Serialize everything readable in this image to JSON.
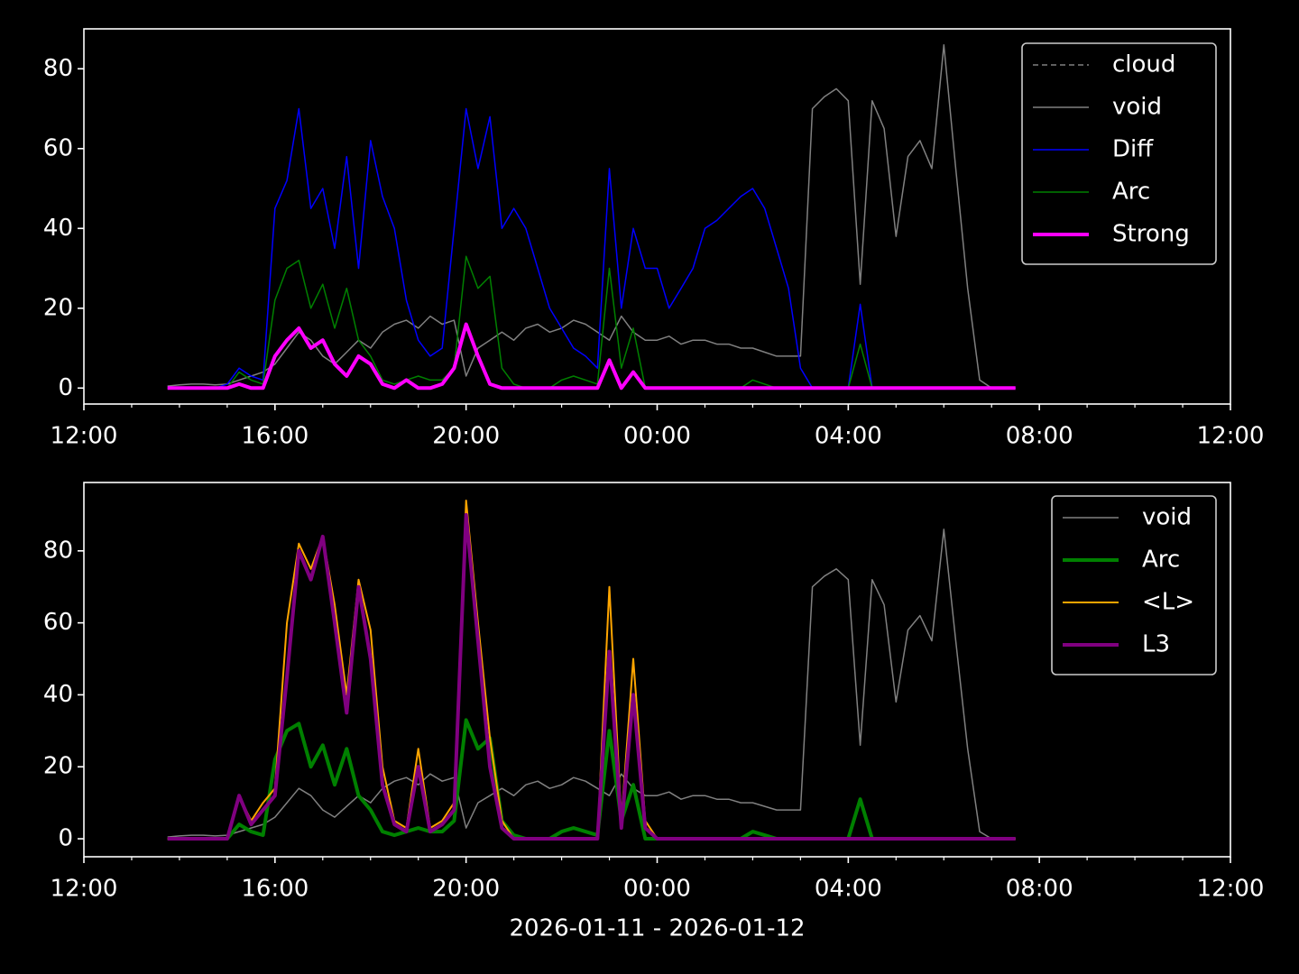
{
  "chart_data": [
    {
      "type": "line",
      "x": [
        13.75,
        14,
        14.25,
        14.5,
        14.75,
        15,
        15.25,
        15.5,
        15.75,
        16,
        16.25,
        16.5,
        16.75,
        17,
        17.25,
        17.5,
        17.75,
        18,
        18.25,
        18.5,
        18.75,
        19,
        19.25,
        19.5,
        19.75,
        20,
        20.25,
        20.5,
        20.75,
        21,
        21.25,
        21.5,
        21.75,
        22,
        22.25,
        22.5,
        22.75,
        23,
        23.25,
        23.5,
        23.75,
        24,
        24.25,
        24.5,
        24.75,
        25,
        25.25,
        25.5,
        25.75,
        26,
        26.25,
        26.5,
        26.75,
        27,
        27.25,
        27.5,
        27.75,
        28,
        28.25,
        28.5,
        28.75,
        29,
        29.25,
        29.5,
        29.75,
        30,
        30.25,
        30.5,
        30.75,
        31,
        31.25,
        31.5
      ],
      "xlim": [
        12,
        36
      ],
      "xticks": [
        {
          "value": 12,
          "label": "12:00"
        },
        {
          "value": 16,
          "label": "16:00"
        },
        {
          "value": 20,
          "label": "20:00"
        },
        {
          "value": 24,
          "label": "00:00"
        },
        {
          "value": 28,
          "label": "04:00"
        },
        {
          "value": 32,
          "label": "08:00"
        },
        {
          "value": 36,
          "label": "12:00"
        }
      ],
      "xminorticks": [
        13,
        14,
        15,
        17,
        18,
        19,
        21,
        22,
        23,
        25,
        26,
        27,
        29,
        30,
        31,
        33,
        34,
        35
      ],
      "ylim": [
        -4,
        90
      ],
      "yticks": [
        0,
        20,
        40,
        60,
        80
      ],
      "legend": "upper right",
      "series": [
        {
          "name": "cloud",
          "color": "#808080",
          "linestyle": "dashed",
          "linewidth": 1.5,
          "values": [
            null,
            null,
            null,
            null,
            null,
            null,
            null,
            null,
            null,
            null,
            null,
            null,
            null,
            null,
            null,
            null,
            null,
            null,
            null,
            null,
            null,
            null,
            null,
            null,
            null,
            null,
            null,
            null,
            null,
            null,
            null,
            null,
            null,
            null,
            null,
            null,
            null,
            null,
            null,
            null,
            null,
            null,
            null,
            null,
            null,
            null,
            null,
            null,
            null,
            null,
            null,
            null,
            null,
            null,
            null,
            null,
            null,
            null,
            null,
            null,
            null,
            null,
            null,
            null,
            null,
            null,
            null,
            null,
            null,
            null,
            null,
            null
          ]
        },
        {
          "name": "void",
          "color": "#808080",
          "linewidth": 1.5,
          "values": [
            0.5,
            0.8,
            1,
            1,
            0.8,
            1,
            2,
            3,
            4,
            6,
            10,
            14,
            12,
            8,
            6,
            9,
            12,
            10,
            14,
            16,
            17,
            15,
            18,
            16,
            17,
            3,
            10,
            12,
            14,
            12,
            15,
            16,
            14,
            15,
            17,
            16,
            14,
            12,
            18,
            14,
            12,
            12,
            13,
            11,
            12,
            12,
            11,
            11,
            10,
            10,
            9,
            8,
            8,
            8,
            70,
            73,
            75,
            72,
            26,
            72,
            65,
            38,
            58,
            62,
            55,
            86,
            55,
            25,
            2,
            0,
            0,
            0
          ]
        },
        {
          "name": "Diff",
          "color": "#0000ff",
          "linewidth": 1.5,
          "values": [
            0,
            0,
            0,
            0,
            0,
            1,
            5,
            3,
            2,
            45,
            52,
            70,
            45,
            50,
            35,
            58,
            30,
            62,
            48,
            40,
            22,
            12,
            8,
            10,
            40,
            70,
            55,
            68,
            40,
            45,
            40,
            30,
            20,
            15,
            10,
            8,
            5,
            55,
            20,
            40,
            30,
            30,
            20,
            25,
            30,
            40,
            42,
            45,
            48,
            50,
            45,
            35,
            25,
            5,
            0,
            0,
            0,
            0,
            21,
            0,
            0,
            0,
            0,
            0,
            0,
            0,
            0,
            0,
            0,
            0,
            0,
            0
          ]
        },
        {
          "name": "Arc",
          "color": "#008000",
          "linewidth": 1.5,
          "values": [
            0,
            0,
            0,
            0,
            0,
            0,
            4,
            2,
            1,
            22,
            30,
            32,
            20,
            26,
            15,
            25,
            12,
            8,
            2,
            1,
            2,
            3,
            2,
            2,
            5,
            33,
            25,
            28,
            5,
            1,
            0,
            0,
            0,
            2,
            3,
            2,
            1,
            30,
            5,
            15,
            0,
            0,
            0,
            0,
            0,
            0,
            0,
            0,
            0,
            2,
            1,
            0,
            0,
            0,
            0,
            0,
            0,
            0,
            11,
            0,
            0,
            0,
            0,
            0,
            0,
            0,
            0,
            0,
            0,
            0,
            0,
            0
          ]
        },
        {
          "name": "Strong",
          "color": "#ff00ff",
          "linewidth": 4,
          "values": [
            0,
            0,
            0,
            0,
            0,
            0,
            1,
            0,
            0,
            8,
            12,
            15,
            10,
            12,
            6,
            3,
            8,
            6,
            1,
            0,
            2,
            0,
            0,
            1,
            5,
            16,
            8,
            1,
            0,
            0,
            0,
            0,
            0,
            0,
            0,
            0,
            0,
            7,
            0,
            4,
            0,
            0,
            0,
            0,
            0,
            0,
            0,
            0,
            0,
            0,
            0,
            0,
            0,
            0,
            0,
            0,
            0,
            0,
            0,
            0,
            0,
            0,
            0,
            0,
            0,
            0,
            0,
            0,
            0,
            0,
            0,
            0
          ]
        }
      ]
    },
    {
      "type": "line",
      "x": [
        13.75,
        14,
        14.25,
        14.5,
        14.75,
        15,
        15.25,
        15.5,
        15.75,
        16,
        16.25,
        16.5,
        16.75,
        17,
        17.25,
        17.5,
        17.75,
        18,
        18.25,
        18.5,
        18.75,
        19,
        19.25,
        19.5,
        19.75,
        20,
        20.25,
        20.5,
        20.75,
        21,
        21.25,
        21.5,
        21.75,
        22,
        22.25,
        22.5,
        22.75,
        23,
        23.25,
        23.5,
        23.75,
        24,
        24.25,
        24.5,
        24.75,
        25,
        25.25,
        25.5,
        25.75,
        26,
        26.25,
        26.5,
        26.75,
        27,
        27.25,
        27.5,
        27.75,
        28,
        28.25,
        28.5,
        28.75,
        29,
        29.25,
        29.5,
        29.75,
        30,
        30.25,
        30.5,
        30.75,
        31,
        31.25,
        31.5
      ],
      "xlim": [
        12,
        36
      ],
      "xticks": [
        {
          "value": 12,
          "label": "12:00"
        },
        {
          "value": 16,
          "label": "16:00"
        },
        {
          "value": 20,
          "label": "20:00"
        },
        {
          "value": 24,
          "label": "00:00"
        },
        {
          "value": 28,
          "label": "04:00"
        },
        {
          "value": 32,
          "label": "08:00"
        },
        {
          "value": 36,
          "label": "12:00"
        }
      ],
      "xminorticks": [
        13,
        14,
        15,
        17,
        18,
        19,
        21,
        22,
        23,
        25,
        26,
        27,
        29,
        30,
        31,
        33,
        34,
        35
      ],
      "xlabel": "2026-01-11 - 2026-01-12",
      "ylim": [
        -5,
        99
      ],
      "yticks": [
        0,
        20,
        40,
        60,
        80
      ],
      "legend": "upper right",
      "series": [
        {
          "name": "void",
          "color": "#808080",
          "linewidth": 1.5,
          "values": [
            0.5,
            0.8,
            1,
            1,
            0.8,
            1,
            2,
            3,
            4,
            6,
            10,
            14,
            12,
            8,
            6,
            9,
            12,
            10,
            14,
            16,
            17,
            15,
            18,
            16,
            17,
            3,
            10,
            12,
            14,
            12,
            15,
            16,
            14,
            15,
            17,
            16,
            14,
            12,
            18,
            14,
            12,
            12,
            13,
            11,
            12,
            12,
            11,
            11,
            10,
            10,
            9,
            8,
            8,
            8,
            70,
            73,
            75,
            72,
            26,
            72,
            65,
            38,
            58,
            62,
            55,
            86,
            55,
            25,
            2,
            0,
            0,
            0
          ]
        },
        {
          "name": "Arc",
          "color": "#008000",
          "linewidth": 4,
          "values": [
            0,
            0,
            0,
            0,
            0,
            0,
            4,
            2,
            1,
            22,
            30,
            32,
            20,
            26,
            15,
            25,
            12,
            8,
            2,
            1,
            2,
            3,
            2,
            2,
            5,
            33,
            25,
            28,
            5,
            1,
            0,
            0,
            0,
            2,
            3,
            2,
            1,
            30,
            5,
            15,
            0,
            0,
            0,
            0,
            0,
            0,
            0,
            0,
            0,
            2,
            1,
            0,
            0,
            0,
            0,
            0,
            0,
            0,
            11,
            0,
            0,
            0,
            0,
            0,
            0,
            0,
            0,
            0,
            0,
            0,
            0,
            0
          ]
        },
        {
          "name": "<L>",
          "color": "#ffa500",
          "linewidth": 2,
          "values": [
            0,
            0,
            0,
            0,
            0,
            0,
            12,
            5,
            10,
            14,
            60,
            82,
            75,
            84,
            65,
            40,
            72,
            58,
            20,
            5,
            3,
            25,
            3,
            5,
            10,
            94,
            60,
            28,
            5,
            0,
            0,
            0,
            0,
            0,
            0,
            0,
            0,
            70,
            5,
            50,
            5,
            0,
            0,
            0,
            0,
            0,
            0,
            0,
            0,
            0,
            0,
            0,
            0,
            0,
            0,
            0,
            0,
            0,
            0,
            0,
            0,
            0,
            0,
            0,
            0,
            0,
            0,
            0,
            0,
            0,
            0,
            0
          ]
        },
        {
          "name": "L3",
          "color": "#800080",
          "linewidth": 4,
          "values": [
            0,
            0,
            0,
            0,
            0,
            0,
            12,
            4,
            8,
            12,
            45,
            80,
            72,
            84,
            60,
            35,
            70,
            50,
            15,
            4,
            2,
            20,
            2,
            4,
            8,
            90,
            55,
            20,
            3,
            0,
            0,
            0,
            0,
            0,
            0,
            0,
            0,
            52,
            3,
            40,
            3,
            0,
            0,
            0,
            0,
            0,
            0,
            0,
            0,
            0,
            0,
            0,
            0,
            0,
            0,
            0,
            0,
            0,
            0,
            0,
            0,
            0,
            0,
            0,
            0,
            0,
            0,
            0,
            0,
            0,
            0,
            0
          ]
        }
      ]
    }
  ]
}
